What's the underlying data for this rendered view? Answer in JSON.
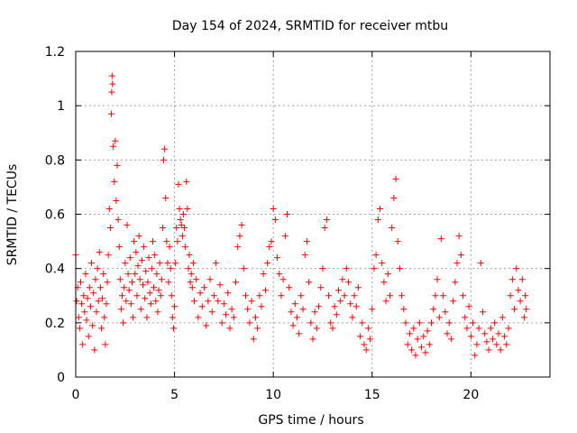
{
  "chart_data": {
    "type": "scatter",
    "title": "Day 154 of 2024, SRMTID for receiver mtbu",
    "xlabel": "GPS time / hours",
    "ylabel": "SRMTID / TECUs",
    "xlim": [
      0,
      24
    ],
    "ylim": [
      0,
      1.2
    ],
    "xticks": [
      0,
      5,
      10,
      15,
      20
    ],
    "xtick_labels": [
      "0",
      "5",
      "10",
      "15",
      "20"
    ],
    "yticks": [
      0,
      0.2,
      0.4,
      0.6,
      0.8,
      1.0,
      1.2
    ],
    "ytick_labels": [
      "0",
      "0.2",
      "0.4",
      "0.6",
      "0.8",
      "1",
      "1.2"
    ],
    "grid": true,
    "marker": "+",
    "color": "#ff0000",
    "series": [
      {
        "name": "SRMTID",
        "points": [
          [
            0.0,
            0.45
          ],
          [
            0.05,
            0.28
          ],
          [
            0.1,
            0.33
          ],
          [
            0.15,
            0.22
          ],
          [
            0.2,
            0.18
          ],
          [
            0.25,
            0.35
          ],
          [
            0.3,
            0.27
          ],
          [
            0.35,
            0.12
          ],
          [
            0.4,
            0.3
          ],
          [
            0.45,
            0.24
          ],
          [
            0.5,
            0.38
          ],
          [
            0.55,
            0.21
          ],
          [
            0.6,
            0.29
          ],
          [
            0.65,
            0.15
          ],
          [
            0.7,
            0.33
          ],
          [
            0.75,
            0.26
          ],
          [
            0.8,
            0.42
          ],
          [
            0.85,
            0.19
          ],
          [
            0.9,
            0.31
          ],
          [
            0.95,
            0.1
          ],
          [
            1.0,
            0.36
          ],
          [
            1.05,
            0.24
          ],
          [
            1.1,
            0.4
          ],
          [
            1.15,
            0.28
          ],
          [
            1.2,
            0.46
          ],
          [
            1.25,
            0.33
          ],
          [
            1.3,
            0.18
          ],
          [
            1.35,
            0.29
          ],
          [
            1.4,
            0.38
          ],
          [
            1.45,
            0.22
          ],
          [
            1.5,
            0.12
          ],
          [
            1.55,
            0.27
          ],
          [
            1.6,
            0.35
          ],
          [
            1.65,
            0.45
          ],
          [
            1.7,
            0.62
          ],
          [
            1.75,
            0.55
          ],
          [
            1.8,
            0.97
          ],
          [
            1.82,
            1.05
          ],
          [
            1.84,
            1.11
          ],
          [
            1.86,
            1.08
          ],
          [
            1.9,
            0.85
          ],
          [
            1.95,
            0.72
          ],
          [
            2.0,
            0.87
          ],
          [
            2.05,
            0.65
          ],
          [
            2.1,
            0.78
          ],
          [
            2.15,
            0.58
          ],
          [
            2.2,
            0.48
          ],
          [
            2.25,
            0.36
          ],
          [
            2.3,
            0.25
          ],
          [
            2.35,
            0.3
          ],
          [
            2.4,
            0.2
          ],
          [
            2.45,
            0.33
          ],
          [
            2.5,
            0.42
          ],
          [
            2.55,
            0.28
          ],
          [
            2.6,
            0.56
          ],
          [
            2.65,
            0.38
          ],
          [
            2.7,
            0.32
          ],
          [
            2.75,
            0.44
          ],
          [
            2.8,
            0.27
          ],
          [
            2.85,
            0.35
          ],
          [
            2.9,
            0.22
          ],
          [
            2.95,
            0.5
          ],
          [
            3.0,
            0.38
          ],
          [
            3.05,
            0.46
          ],
          [
            3.1,
            0.3
          ],
          [
            3.15,
            0.41
          ],
          [
            3.2,
            0.52
          ],
          [
            3.25,
            0.36
          ],
          [
            3.3,
            0.25
          ],
          [
            3.35,
            0.43
          ],
          [
            3.4,
            0.34
          ],
          [
            3.45,
            0.48
          ],
          [
            3.5,
            0.29
          ],
          [
            3.55,
            0.39
          ],
          [
            3.6,
            0.22
          ],
          [
            3.65,
            0.35
          ],
          [
            3.7,
            0.44
          ],
          [
            3.75,
            0.31
          ],
          [
            3.8,
            0.27
          ],
          [
            3.85,
            0.4
          ],
          [
            3.9,
            0.5
          ],
          [
            3.95,
            0.33
          ],
          [
            4.0,
            0.45
          ],
          [
            4.05,
            0.28
          ],
          [
            4.1,
            0.38
          ],
          [
            4.15,
            0.24
          ],
          [
            4.2,
            0.32
          ],
          [
            4.25,
            0.42
          ],
          [
            4.3,
            0.3
          ],
          [
            4.35,
            0.36
          ],
          [
            4.4,
            0.55
          ],
          [
            4.45,
            0.8
          ],
          [
            4.5,
            0.84
          ],
          [
            4.55,
            0.66
          ],
          [
            4.6,
            0.5
          ],
          [
            4.65,
            0.42
          ],
          [
            4.7,
            0.35
          ],
          [
            4.75,
            0.48
          ],
          [
            4.8,
            0.4
          ],
          [
            4.85,
            0.3
          ],
          [
            4.9,
            0.22
          ],
          [
            4.95,
            0.18
          ],
          [
            5.0,
            0.26
          ],
          [
            5.05,
            0.42
          ],
          [
            5.1,
            0.55
          ],
          [
            5.15,
            0.5
          ],
          [
            5.2,
            0.71
          ],
          [
            5.25,
            0.62
          ],
          [
            5.3,
            0.58
          ],
          [
            5.35,
            0.56
          ],
          [
            5.4,
            0.52
          ],
          [
            5.45,
            0.6
          ],
          [
            5.5,
            0.55
          ],
          [
            5.55,
            0.48
          ],
          [
            5.6,
            0.72
          ],
          [
            5.65,
            0.62
          ],
          [
            5.7,
            0.4
          ],
          [
            5.75,
            0.45
          ],
          [
            5.8,
            0.35
          ],
          [
            5.85,
            0.38
          ],
          [
            5.9,
            0.33
          ],
          [
            5.95,
            0.42
          ],
          [
            6.0,
            0.28
          ],
          [
            6.1,
            0.36
          ],
          [
            6.2,
            0.22
          ],
          [
            6.3,
            0.31
          ],
          [
            6.4,
            0.26
          ],
          [
            6.5,
            0.33
          ],
          [
            6.6,
            0.19
          ],
          [
            6.7,
            0.28
          ],
          [
            6.8,
            0.36
          ],
          [
            6.9,
            0.24
          ],
          [
            7.0,
            0.3
          ],
          [
            7.1,
            0.42
          ],
          [
            7.2,
            0.28
          ],
          [
            7.3,
            0.34
          ],
          [
            7.4,
            0.2
          ],
          [
            7.5,
            0.27
          ],
          [
            7.6,
            0.23
          ],
          [
            7.7,
            0.31
          ],
          [
            7.8,
            0.18
          ],
          [
            7.9,
            0.25
          ],
          [
            8.0,
            0.22
          ],
          [
            8.1,
            0.35
          ],
          [
            8.2,
            0.48
          ],
          [
            8.3,
            0.52
          ],
          [
            8.4,
            0.56
          ],
          [
            8.5,
            0.4
          ],
          [
            8.6,
            0.3
          ],
          [
            8.7,
            0.25
          ],
          [
            8.8,
            0.2
          ],
          [
            8.9,
            0.28
          ],
          [
            9.0,
            0.14
          ],
          [
            9.1,
            0.22
          ],
          [
            9.2,
            0.18
          ],
          [
            9.3,
            0.3
          ],
          [
            9.4,
            0.26
          ],
          [
            9.5,
            0.38
          ],
          [
            9.6,
            0.32
          ],
          [
            9.7,
            0.42
          ],
          [
            9.8,
            0.48
          ],
          [
            9.9,
            0.5
          ],
          [
            10.0,
            0.62
          ],
          [
            10.1,
            0.58
          ],
          [
            10.2,
            0.44
          ],
          [
            10.3,
            0.38
          ],
          [
            10.4,
            0.3
          ],
          [
            10.5,
            0.36
          ],
          [
            10.6,
            0.52
          ],
          [
            10.7,
            0.6
          ],
          [
            10.8,
            0.33
          ],
          [
            10.9,
            0.24
          ],
          [
            11.0,
            0.19
          ],
          [
            11.1,
            0.27
          ],
          [
            11.2,
            0.22
          ],
          [
            11.3,
            0.16
          ],
          [
            11.4,
            0.3
          ],
          [
            11.5,
            0.25
          ],
          [
            11.6,
            0.45
          ],
          [
            11.7,
            0.5
          ],
          [
            11.8,
            0.35
          ],
          [
            11.9,
            0.2
          ],
          [
            12.0,
            0.14
          ],
          [
            12.1,
            0.24
          ],
          [
            12.2,
            0.18
          ],
          [
            12.3,
            0.26
          ],
          [
            12.4,
            0.33
          ],
          [
            12.5,
            0.4
          ],
          [
            12.6,
            0.55
          ],
          [
            12.7,
            0.58
          ],
          [
            12.8,
            0.3
          ],
          [
            12.9,
            0.2
          ],
          [
            13.0,
            0.18
          ],
          [
            13.1,
            0.26
          ],
          [
            13.2,
            0.23
          ],
          [
            13.3,
            0.32
          ],
          [
            13.4,
            0.28
          ],
          [
            13.5,
            0.36
          ],
          [
            13.6,
            0.3
          ],
          [
            13.7,
            0.4
          ],
          [
            13.8,
            0.35
          ],
          [
            13.9,
            0.27
          ],
          [
            14.0,
            0.22
          ],
          [
            14.1,
            0.3
          ],
          [
            14.2,
            0.26
          ],
          [
            14.3,
            0.33
          ],
          [
            14.4,
            0.15
          ],
          [
            14.5,
            0.2
          ],
          [
            14.6,
            0.12
          ],
          [
            14.7,
            0.1
          ],
          [
            14.8,
            0.18
          ],
          [
            14.9,
            0.14
          ],
          [
            15.0,
            0.25
          ],
          [
            15.1,
            0.4
          ],
          [
            15.2,
            0.45
          ],
          [
            15.3,
            0.58
          ],
          [
            15.4,
            0.62
          ],
          [
            15.5,
            0.42
          ],
          [
            15.6,
            0.35
          ],
          [
            15.7,
            0.28
          ],
          [
            15.8,
            0.38
          ],
          [
            15.9,
            0.3
          ],
          [
            16.0,
            0.55
          ],
          [
            16.1,
            0.66
          ],
          [
            16.2,
            0.73
          ],
          [
            16.3,
            0.5
          ],
          [
            16.4,
            0.4
          ],
          [
            16.5,
            0.3
          ],
          [
            16.6,
            0.25
          ],
          [
            16.7,
            0.2
          ],
          [
            16.8,
            0.12
          ],
          [
            16.9,
            0.16
          ],
          [
            17.0,
            0.1
          ],
          [
            17.1,
            0.18
          ],
          [
            17.2,
            0.08
          ],
          [
            17.3,
            0.14
          ],
          [
            17.4,
            0.2
          ],
          [
            17.5,
            0.11
          ],
          [
            17.6,
            0.15
          ],
          [
            17.7,
            0.09
          ],
          [
            17.8,
            0.17
          ],
          [
            17.9,
            0.12
          ],
          [
            18.0,
            0.2
          ],
          [
            18.1,
            0.25
          ],
          [
            18.2,
            0.3
          ],
          [
            18.3,
            0.36
          ],
          [
            18.4,
            0.22
          ],
          [
            18.5,
            0.51
          ],
          [
            18.6,
            0.3
          ],
          [
            18.7,
            0.24
          ],
          [
            18.8,
            0.16
          ],
          [
            18.9,
            0.2
          ],
          [
            19.0,
            0.14
          ],
          [
            19.1,
            0.28
          ],
          [
            19.2,
            0.35
          ],
          [
            19.3,
            0.42
          ],
          [
            19.4,
            0.52
          ],
          [
            19.5,
            0.45
          ],
          [
            19.6,
            0.3
          ],
          [
            19.7,
            0.22
          ],
          [
            19.8,
            0.18
          ],
          [
            19.9,
            0.26
          ],
          [
            20.0,
            0.15
          ],
          [
            20.1,
            0.2
          ],
          [
            20.2,
            0.08
          ],
          [
            20.3,
            0.12
          ],
          [
            20.4,
            0.18
          ],
          [
            20.5,
            0.42
          ],
          [
            20.6,
            0.24
          ],
          [
            20.7,
            0.16
          ],
          [
            20.8,
            0.13
          ],
          [
            20.9,
            0.1
          ],
          [
            21.0,
            0.18
          ],
          [
            21.1,
            0.14
          ],
          [
            21.2,
            0.2
          ],
          [
            21.3,
            0.12
          ],
          [
            21.4,
            0.16
          ],
          [
            21.5,
            0.1
          ],
          [
            21.6,
            0.22
          ],
          [
            21.7,
            0.15
          ],
          [
            21.8,
            0.12
          ],
          [
            21.9,
            0.18
          ],
          [
            22.0,
            0.3
          ],
          [
            22.1,
            0.36
          ],
          [
            22.2,
            0.25
          ],
          [
            22.3,
            0.4
          ],
          [
            22.4,
            0.32
          ],
          [
            22.5,
            0.28
          ],
          [
            22.6,
            0.36
          ],
          [
            22.7,
            0.22
          ],
          [
            22.75,
            0.3
          ],
          [
            22.8,
            0.25
          ]
        ]
      }
    ]
  }
}
